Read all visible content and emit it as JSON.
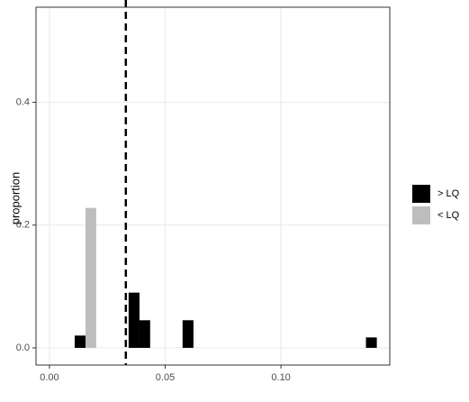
{
  "chart_data": {
    "type": "histogram",
    "y_label": "proportion",
    "bins": [
      0.0109,
      0.0156,
      0.0202,
      0.0249,
      0.0295,
      0.0342,
      0.0389,
      0.0435,
      0.0482,
      0.0528,
      0.0575,
      0.0622,
      0.0668,
      0.0715,
      0.0761,
      0.0808,
      0.0855,
      0.0901,
      0.0948,
      0.0994,
      0.1041,
      0.1088,
      0.1134,
      0.1181,
      0.1227,
      0.1274,
      0.1321,
      0.1367,
      0.1414
    ],
    "series": [
      {
        "name": "> LQ",
        "color": "#000000",
        "values": [
          0.02,
          0,
          0,
          0,
          0,
          0.09,
          0.045,
          0,
          0,
          0,
          0.045,
          0,
          0,
          0,
          0,
          0,
          0,
          0,
          0,
          0,
          0,
          0,
          0,
          0,
          0,
          0,
          0,
          0.017
        ]
      },
      {
        "name": "< LQ",
        "color": "#bdbdbd",
        "values": [
          0,
          0.228,
          0,
          0,
          0,
          0,
          0,
          0,
          0,
          0,
          0,
          0,
          0,
          0,
          0,
          0,
          0,
          0,
          0,
          0,
          0,
          0,
          0,
          0,
          0,
          0,
          0,
          0
        ]
      }
    ],
    "vline": 0.033,
    "xlim": [
      -0.0058,
      0.147
    ],
    "ylim": [
      -0.028,
      0.555
    ],
    "xticks": [
      {
        "value": 0,
        "label": "0.00"
      },
      0.05,
      {
        "value": 0.1,
        "label": "0.10"
      }
    ],
    "yticks": [
      {
        "value": 0,
        "label": "0.0"
      },
      0.2,
      0.4
    ],
    "grid": true
  }
}
